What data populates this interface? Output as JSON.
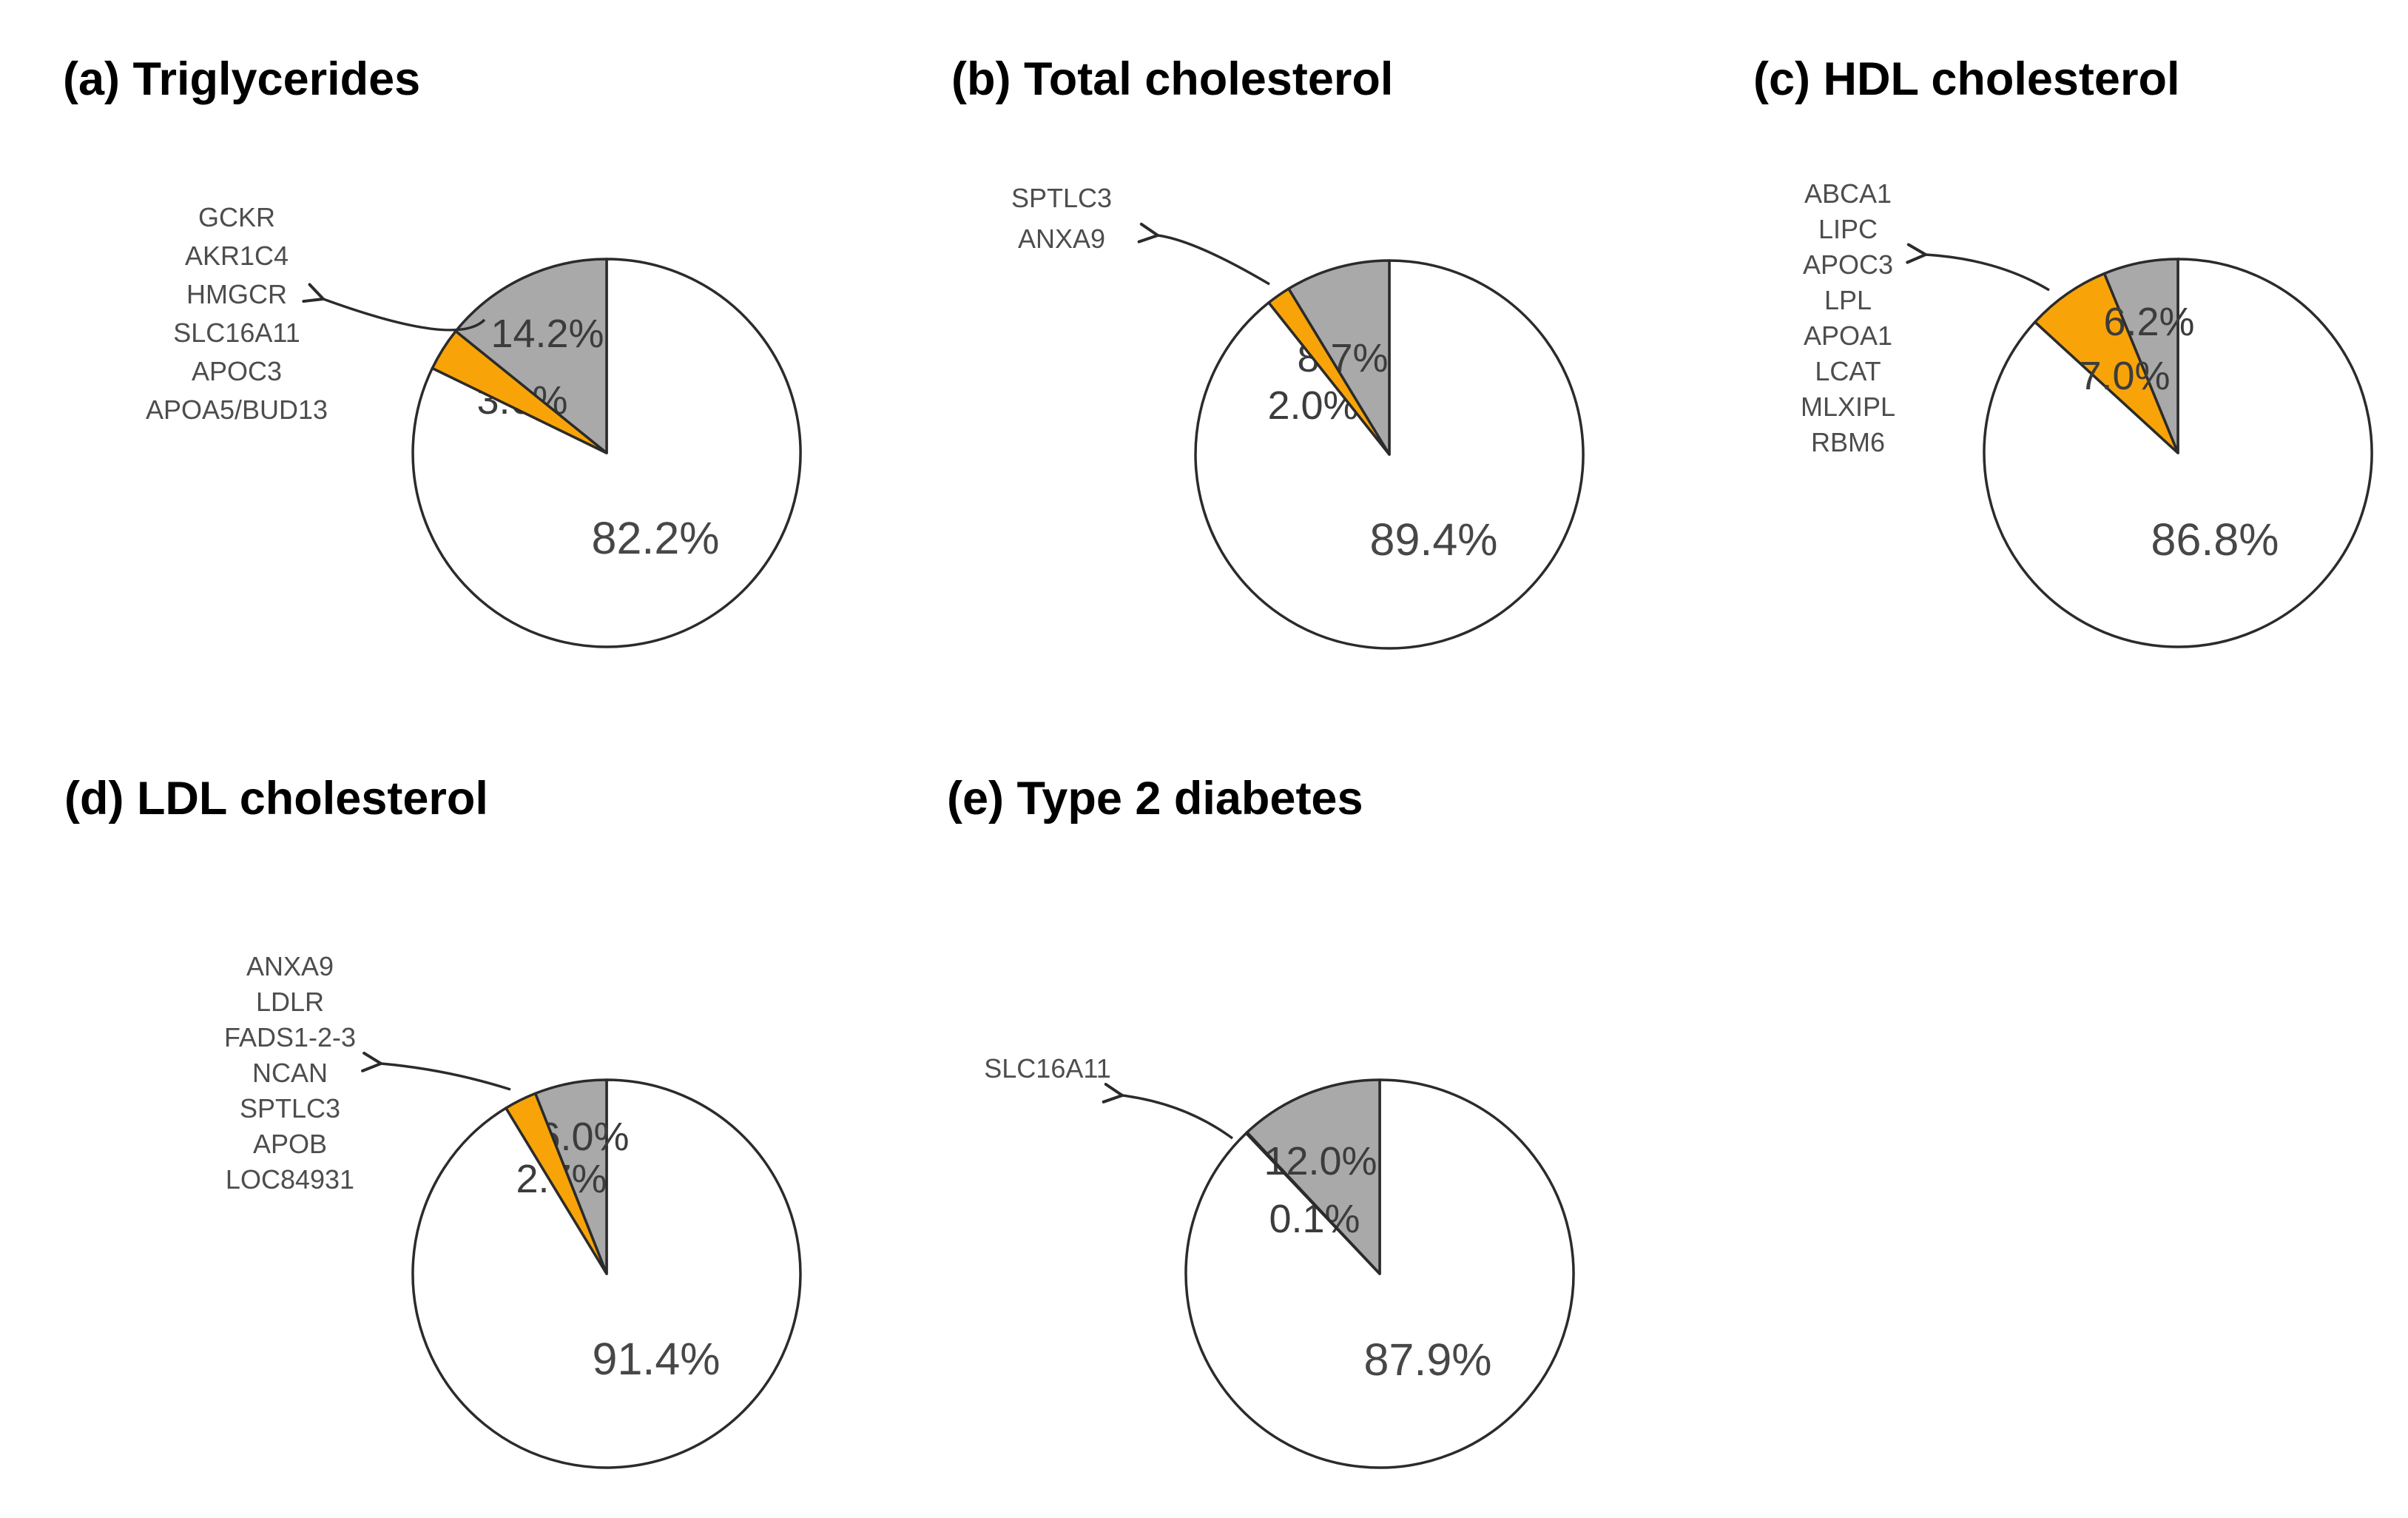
{
  "figure": {
    "background": "#ffffff",
    "description_visible_text_only": true
  },
  "colors": {
    "white": "#FFFFFF",
    "orange": "#F8A408",
    "gray": "#A9A9A9",
    "outline": "#2b2b2b",
    "pct_text": "#3c3c3c",
    "gene_text": "#4d4d4d",
    "title_text": "#000000"
  },
  "chart_data": [
    {
      "id": "a",
      "type": "pie",
      "title": "(a) Triglycerides",
      "direction": "clockwise",
      "start_angle": "12-o-clock",
      "legend_position": "none",
      "genes": [
        "GCKR",
        "AKR1C4",
        "HMGCR",
        "SLC16A11",
        "APOC3",
        "APOA5/BUD13"
      ],
      "slices": [
        {
          "color_key": "white",
          "value": 82.2,
          "label": "82.2%"
        },
        {
          "color_key": "orange",
          "value": 3.6,
          "label": "3.6%"
        },
        {
          "color_key": "gray",
          "value": 14.2,
          "label": "14.2%"
        }
      ]
    },
    {
      "id": "b",
      "type": "pie",
      "title": "(b) Total cholesterol",
      "direction": "clockwise",
      "start_angle": "12-o-clock",
      "legend_position": "none",
      "genes": [
        "SPTLC3",
        "ANXA9"
      ],
      "slices": [
        {
          "color_key": "white",
          "value": 89.4,
          "label": "89.4%"
        },
        {
          "color_key": "orange",
          "value": 2.0,
          "label": "2.0%"
        },
        {
          "color_key": "gray",
          "value": 8.7,
          "label": "8.7%"
        }
      ]
    },
    {
      "id": "c",
      "type": "pie",
      "title": "(c) HDL cholesterol",
      "direction": "clockwise",
      "start_angle": "12-o-clock",
      "legend_position": "none",
      "genes": [
        "ABCA1",
        "LIPC",
        "APOC3",
        "LPL",
        "APOA1",
        "LCAT",
        "MLXIPL",
        "RBM6"
      ],
      "slices": [
        {
          "color_key": "white",
          "value": 86.8,
          "label": "86.8%"
        },
        {
          "color_key": "orange",
          "value": 7.0,
          "label": "7.0%"
        },
        {
          "color_key": "gray",
          "value": 6.2,
          "label": "6.2%"
        }
      ]
    },
    {
      "id": "d",
      "type": "pie",
      "title": "(d) LDL cholesterol",
      "direction": "clockwise",
      "start_angle": "12-o-clock",
      "legend_position": "none",
      "genes": [
        "ANXA9",
        "LDLR",
        "FADS1-2-3",
        "NCAN",
        "SPTLC3",
        "APOB",
        "LOC84931"
      ],
      "slices": [
        {
          "color_key": "white",
          "value": 91.4,
          "label": "91.4%"
        },
        {
          "color_key": "orange",
          "value": 2.7,
          "label": "2.7%"
        },
        {
          "color_key": "gray",
          "value": 6.0,
          "label": "6.0%"
        }
      ]
    },
    {
      "id": "e",
      "type": "pie",
      "title": "(e) Type 2 diabetes",
      "direction": "clockwise",
      "start_angle": "12-o-clock",
      "legend_position": "none",
      "genes": [
        "SLC16A11"
      ],
      "slices": [
        {
          "color_key": "white",
          "value": 87.9,
          "label": "87.9%"
        },
        {
          "color_key": "orange",
          "value": 0.1,
          "label": "0.1%"
        },
        {
          "color_key": "gray",
          "value": 12.0,
          "label": "12.0%"
        }
      ]
    }
  ]
}
